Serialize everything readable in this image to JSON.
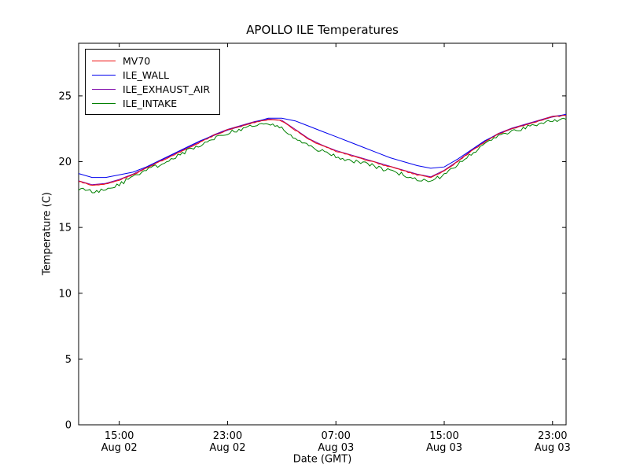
{
  "chart_data": {
    "type": "line",
    "title": "APOLLO ILE Temperatures",
    "xlabel": "Date (GMT)",
    "ylabel": "Temperature (C)",
    "grid": false,
    "legend_position": "upper left",
    "x_unit": "hours after Aug 02 00:00 GMT",
    "xlim": [
      12,
      48
    ],
    "ylim": [
      0,
      29
    ],
    "yticks": [
      0,
      5,
      10,
      15,
      20,
      25
    ],
    "xticks": [
      {
        "value": 15,
        "time": "15:00",
        "date": "Aug 02"
      },
      {
        "value": 23,
        "time": "23:00",
        "date": "Aug 02"
      },
      {
        "value": 31,
        "time": "07:00",
        "date": "Aug 03"
      },
      {
        "value": 39,
        "time": "15:00",
        "date": "Aug 03"
      },
      {
        "value": 47,
        "time": "23:00",
        "date": "Aug 03"
      }
    ],
    "x": [
      12,
      13,
      14,
      15,
      16,
      17,
      18,
      19,
      20,
      21,
      22,
      23,
      24,
      25,
      26,
      27,
      28,
      29,
      30,
      31,
      32,
      33,
      34,
      35,
      36,
      37,
      38,
      39,
      40,
      41,
      42,
      43,
      44,
      45,
      46,
      47,
      48
    ],
    "series": [
      {
        "name": "MV70",
        "color": "#ee1111",
        "noise": 0.04,
        "values": [
          18.5,
          18.2,
          18.3,
          18.6,
          19.0,
          19.5,
          20.0,
          20.5,
          21.0,
          21.5,
          22.0,
          22.4,
          22.7,
          23.0,
          23.2,
          23.1,
          22.4,
          21.7,
          21.2,
          20.8,
          20.5,
          20.2,
          19.9,
          19.6,
          19.3,
          19.0,
          18.8,
          19.3,
          20.0,
          20.8,
          21.5,
          22.1,
          22.5,
          22.8,
          23.1,
          23.4,
          23.5
        ]
      },
      {
        "name": "ILE_WALL",
        "color": "#0000ee",
        "noise": 0,
        "values": [
          19.1,
          18.8,
          18.8,
          19.0,
          19.2,
          19.6,
          20.1,
          20.6,
          21.1,
          21.6,
          22.0,
          22.4,
          22.7,
          23.0,
          23.3,
          23.3,
          23.1,
          22.7,
          22.3,
          21.9,
          21.5,
          21.1,
          20.7,
          20.3,
          20.0,
          19.7,
          19.5,
          19.6,
          20.2,
          20.9,
          21.6,
          22.1,
          22.5,
          22.8,
          23.1,
          23.4,
          23.6
        ]
      },
      {
        "name": "ILE_EXHAUST_AIR",
        "color": "#7b00a8",
        "noise": 0,
        "values": [
          18.55,
          18.25,
          18.35,
          18.65,
          19.05,
          19.55,
          20.05,
          20.55,
          21.05,
          21.55,
          22.05,
          22.45,
          22.75,
          23.05,
          23.25,
          23.15,
          22.45,
          21.75,
          21.25,
          20.85,
          20.55,
          20.25,
          19.95,
          19.65,
          19.35,
          19.05,
          18.85,
          19.35,
          20.05,
          20.85,
          21.55,
          22.15,
          22.55,
          22.85,
          23.15,
          23.45,
          23.55
        ]
      },
      {
        "name": "ILE_INTAKE",
        "color": "#008000",
        "noise": 0.15,
        "values": [
          17.9,
          17.7,
          17.9,
          18.3,
          18.8,
          19.3,
          19.8,
          20.3,
          20.8,
          21.3,
          21.8,
          22.2,
          22.5,
          22.7,
          22.8,
          22.6,
          21.8,
          21.2,
          20.8,
          20.4,
          20.1,
          19.9,
          19.6,
          19.3,
          19.0,
          18.7,
          18.5,
          19.0,
          19.8,
          20.6,
          21.3,
          21.9,
          22.3,
          22.6,
          22.9,
          23.1,
          23.2
        ]
      }
    ]
  }
}
